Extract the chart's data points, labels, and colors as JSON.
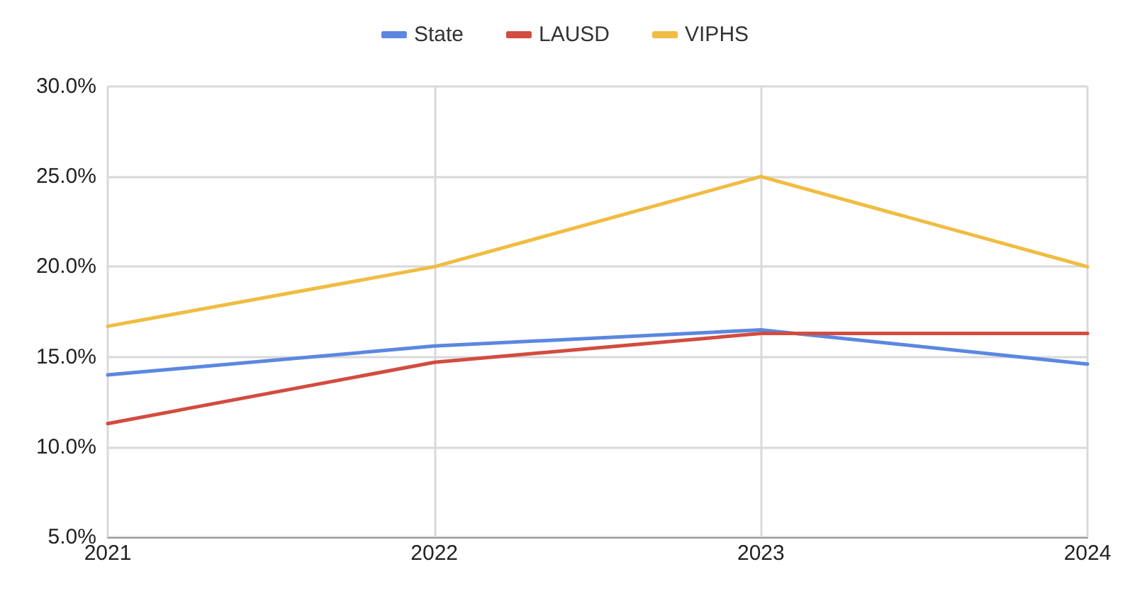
{
  "chart_data": {
    "type": "line",
    "x": [
      2021,
      2022,
      2023,
      2024
    ],
    "series": [
      {
        "name": "State",
        "color": "#5b87e0",
        "values": [
          14.0,
          15.6,
          16.5,
          14.6
        ]
      },
      {
        "name": "LAUSD",
        "color": "#d24c3f",
        "values": [
          11.3,
          14.7,
          16.3,
          16.3
        ]
      },
      {
        "name": "VIPHS",
        "color": "#f0bc42",
        "values": [
          16.7,
          20.0,
          25.0,
          20.0
        ]
      }
    ],
    "xlim": [
      2021,
      2024
    ],
    "xticks": [
      2021,
      2022,
      2023,
      2024
    ],
    "ylim": [
      5,
      30
    ],
    "yticks": [
      {
        "value": 5,
        "label": "5.0%"
      },
      {
        "value": 10,
        "label": "10.0%"
      },
      {
        "value": 15,
        "label": "15.0%"
      },
      {
        "value": 20,
        "label": "20.0%"
      },
      {
        "value": 25,
        "label": "25.0%"
      },
      {
        "value": 30,
        "label": "30.0%"
      }
    ],
    "grid": true,
    "legend": "top",
    "marker": "none",
    "line_style": "solid"
  }
}
